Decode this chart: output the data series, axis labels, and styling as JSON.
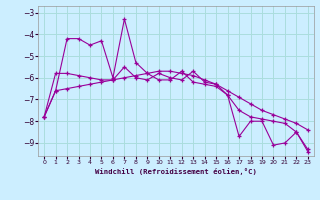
{
  "xlabel": "Windchill (Refroidissement éolien,°C)",
  "background_color": "#cceeff",
  "grid_color": "#aadddd",
  "line_color": "#990099",
  "ylim": [
    -9.6,
    -2.7
  ],
  "xlim": [
    -0.5,
    23.5
  ],
  "yticks": [
    -9,
    -8,
    -7,
    -6,
    -5,
    -4,
    -3
  ],
  "xticks": [
    0,
    1,
    2,
    3,
    4,
    5,
    6,
    7,
    8,
    9,
    10,
    11,
    12,
    13,
    14,
    15,
    16,
    17,
    18,
    19,
    20,
    21,
    22,
    23
  ],
  "series1_x": [
    0,
    1,
    2,
    3,
    4,
    5,
    6,
    7,
    8,
    9,
    10,
    11,
    12,
    13,
    14,
    15,
    16,
    17,
    18,
    19,
    20,
    21,
    22,
    23
  ],
  "series1_y": [
    -7.8,
    -6.6,
    -4.2,
    -4.2,
    -4.5,
    -4.3,
    -6.0,
    -3.3,
    -5.3,
    -5.8,
    -6.1,
    -6.1,
    -5.7,
    -6.2,
    -6.3,
    -6.4,
    -6.8,
    -8.7,
    -8.0,
    -8.0,
    -9.1,
    -9.0,
    -8.5,
    -9.4
  ],
  "series2_x": [
    0,
    1,
    2,
    3,
    4,
    5,
    6,
    7,
    8,
    9,
    10,
    11,
    12,
    13,
    14,
    15,
    16,
    17,
    18,
    19,
    20,
    21,
    22,
    23
  ],
  "series2_y": [
    -7.8,
    -5.8,
    -5.8,
    -5.9,
    -6.0,
    -6.1,
    -6.1,
    -5.5,
    -6.0,
    -6.1,
    -5.8,
    -6.0,
    -6.1,
    -5.7,
    -6.2,
    -6.3,
    -6.8,
    -7.5,
    -7.8,
    -7.9,
    -8.0,
    -8.1,
    -8.5,
    -9.3
  ],
  "series3_x": [
    0,
    1,
    2,
    3,
    4,
    5,
    6,
    7,
    8,
    9,
    10,
    11,
    12,
    13,
    14,
    15,
    16,
    17,
    18,
    19,
    20,
    21,
    22,
    23
  ],
  "series3_y": [
    -7.8,
    -6.6,
    -6.5,
    -6.4,
    -6.3,
    -6.2,
    -6.1,
    -6.0,
    -5.9,
    -5.8,
    -5.7,
    -5.7,
    -5.8,
    -5.9,
    -6.1,
    -6.3,
    -6.6,
    -6.9,
    -7.2,
    -7.5,
    -7.7,
    -7.9,
    -8.1,
    -8.4
  ]
}
